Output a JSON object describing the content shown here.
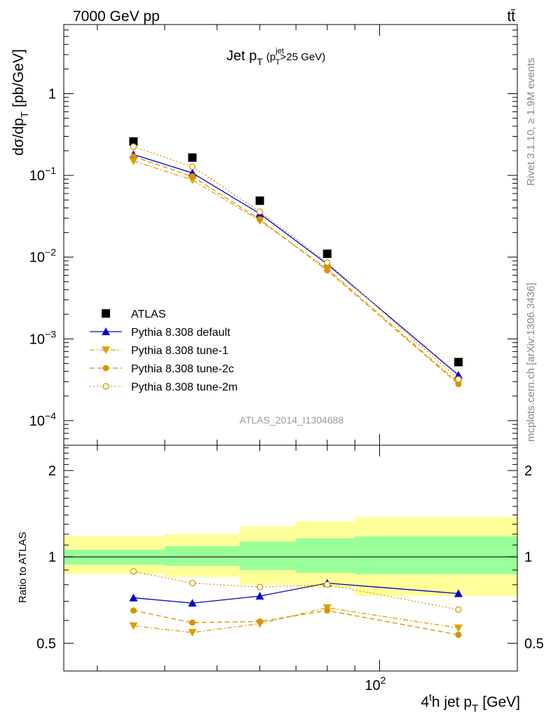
{
  "header": {
    "energy_label": "7000 GeV pp",
    "process_label": "tt̄"
  },
  "side_labels": {
    "rivet": "Rivet 3.1.10, ≥ 1.9M events",
    "mcplots": "mcplots.cern.ch [arXiv:1306.3436]"
  },
  "analysis_id": "ATLAS_2014_I1304688",
  "chart_data": [
    {
      "type": "scatter",
      "panel": "main",
      "title_main": "Jet p",
      "title_sub": "T",
      "title_cut": "(p",
      "title_cut_sup": "jet",
      "title_cut_sub": "T",
      "title_cut_value": ">25 GeV)",
      "ylabel_main": "dσ/dp",
      "ylabel_sub": "T",
      "ylabel_unit": "[pb/GeV]",
      "xscale": "log",
      "yscale": "log",
      "xlim": [
        26,
        180
      ],
      "ylim": [
        5e-05,
        7
      ],
      "y_ticks": [
        {
          "value": 1,
          "mantissa": "1",
          "exp": ""
        },
        {
          "value": 0.1,
          "mantissa": "10",
          "exp": "−1"
        },
        {
          "value": 0.01,
          "mantissa": "10",
          "exp": "−2"
        },
        {
          "value": 0.001,
          "mantissa": "10",
          "exp": "−3"
        },
        {
          "value": 0.0001,
          "mantissa": "10",
          "exp": "−4"
        }
      ],
      "x": [
        35,
        45,
        60,
        80,
        140
      ],
      "legend_placement": "lower-left",
      "series": [
        {
          "name": "ATLAS",
          "marker": "square",
          "color": "#000000",
          "line": "none",
          "values": [
            0.26,
            0.165,
            0.049,
            0.011,
            0.00052
          ]
        },
        {
          "name": "Pythia 8.308 default",
          "marker": "triangle-up",
          "color": "#0000cc",
          "line": "solid",
          "values": [
            0.18,
            0.107,
            0.034,
            0.0082,
            0.00036
          ]
        },
        {
          "name": "Pythia 8.308 tune-1",
          "marker": "triangle-down",
          "color": "#e0a000",
          "line": "dashdot",
          "values": [
            0.15,
            0.088,
            0.028,
            0.0072,
            0.00029
          ]
        },
        {
          "name": "Pythia 8.308 tune-2c",
          "marker": "circle",
          "color": "#d89400",
          "line": "dashed",
          "values": [
            0.17,
            0.097,
            0.029,
            0.0069,
            0.00028
          ]
        },
        {
          "name": "Pythia 8.308 tune-2m",
          "marker": "circle-open",
          "color": "#d89400",
          "line": "dotted",
          "values": [
            0.225,
            0.128,
            0.036,
            0.0086,
            0.00032
          ]
        }
      ]
    },
    {
      "type": "scatter",
      "panel": "ratio",
      "ylabel": "Ratio to ATLAS",
      "xlabel_prefix": "4",
      "xlabel_sup": "t",
      "xlabel_mid": "h jet p",
      "xlabel_sub": "T",
      "xlabel_unit": "[GeV]",
      "xscale": "log",
      "yscale": "log",
      "xlim": [
        26,
        180
      ],
      "ylim": [
        0.4,
        2.45
      ],
      "y_ticks": [
        {
          "value": 0.5,
          "label": "0.5"
        },
        {
          "value": 1,
          "label": "1"
        },
        {
          "value": 2,
          "label": "2"
        }
      ],
      "x_ticks": [
        {
          "value": 100,
          "mantissa": "10",
          "exp": "2"
        }
      ],
      "reference": 1,
      "bands": [
        {
          "x_low": 26,
          "x_high": 40,
          "stat_low": 0.94,
          "stat_high": 1.06,
          "tot_low": 0.87,
          "tot_high": 1.18
        },
        {
          "x_low": 40,
          "x_high": 55,
          "stat_low": 0.93,
          "stat_high": 1.09,
          "tot_low": 0.85,
          "tot_high": 1.2
        },
        {
          "x_low": 55,
          "x_high": 70,
          "stat_low": 0.9,
          "stat_high": 1.13,
          "tot_low": 0.8,
          "tot_high": 1.28
        },
        {
          "x_low": 70,
          "x_high": 90,
          "stat_low": 0.88,
          "stat_high": 1.16,
          "tot_low": 0.78,
          "tot_high": 1.33
        },
        {
          "x_low": 90,
          "x_high": 180,
          "stat_low": 0.87,
          "stat_high": 1.18,
          "tot_low": 0.73,
          "tot_high": 1.38
        }
      ],
      "x": [
        35,
        45,
        60,
        80,
        140
      ],
      "series": [
        {
          "name": "Pythia 8.308 default",
          "marker": "triangle-up",
          "color": "#0000cc",
          "line": "solid",
          "values": [
            0.72,
            0.69,
            0.73,
            0.81,
            0.745
          ]
        },
        {
          "name": "Pythia 8.308 tune-1",
          "marker": "triangle-down",
          "color": "#e0a000",
          "line": "dashdot",
          "values": [
            0.575,
            0.545,
            0.585,
            0.665,
            0.565
          ]
        },
        {
          "name": "Pythia 8.308 tune-2c",
          "marker": "circle",
          "color": "#d89400",
          "line": "dashed",
          "values": [
            0.65,
            0.59,
            0.595,
            0.65,
            0.535
          ]
        },
        {
          "name": "Pythia 8.308 tune-2m",
          "marker": "circle-open",
          "color": "#d89400",
          "line": "dotted",
          "values": [
            0.89,
            0.81,
            0.785,
            0.8,
            0.655
          ]
        }
      ],
      "colors": {
        "stat_band": "#99ff99",
        "total_band": "#ffff99",
        "reference_line": "#000000"
      }
    }
  ]
}
